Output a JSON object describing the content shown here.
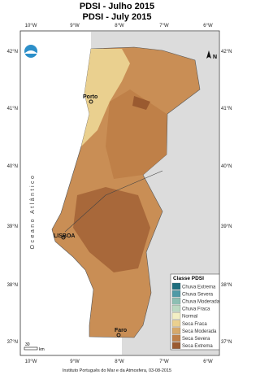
{
  "header": {
    "title_pt": "PDSI - Julho 2015",
    "title_en": "PDSI - July 2015"
  },
  "map": {
    "x_labels": [
      "10°W",
      "9°W",
      "8°W",
      "7°W",
      "6°W"
    ],
    "y_labels": [
      "42°N",
      "41°N",
      "40°N",
      "39°N",
      "38°N",
      "37°N"
    ],
    "places": [
      "Porto",
      "LISBOA",
      "Faro"
    ],
    "ocean": "Oceano Atlântico",
    "north": "N",
    "scale": [
      "30",
      "km"
    ]
  },
  "legend": {
    "title": "Classe PDSI",
    "items": [
      {
        "label": "Chuva Extrema",
        "color": "#1f6e7e"
      },
      {
        "label": "Chuva Severa",
        "color": "#4f9aa6"
      },
      {
        "label": "Chuva Moderada",
        "color": "#8dbfb3"
      },
      {
        "label": "Chuva Fraca",
        "color": "#bcd9c2"
      },
      {
        "label": "Normal",
        "color": "#f3efc4"
      },
      {
        "label": "Seca Fraca",
        "color": "#ead08f"
      },
      {
        "label": "Seca Moderada",
        "color": "#d6a96b"
      },
      {
        "label": "Seca Severa",
        "color": "#bf8048"
      },
      {
        "label": "Seca Extrema",
        "color": "#9a5a30"
      }
    ]
  },
  "footer": "Instituto Português do Mar e da Atmosfera, 03-08-2015"
}
